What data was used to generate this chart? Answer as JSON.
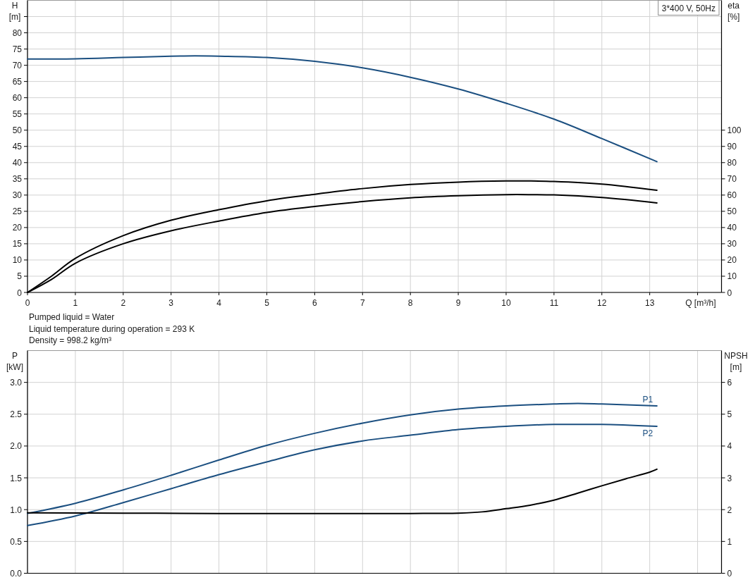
{
  "chart_data": [
    {
      "type": "line",
      "subtitle": "3*400 V, 50Hz",
      "xlabel": "Q [m³/h]",
      "ylabel": "H [m]",
      "y2label": "eta [%]",
      "annotations": [
        "Pumped liquid = Water",
        "Liquid temperature during operation = 293 K",
        "Density = 998.2 kg/m³"
      ],
      "xlim": [
        0,
        14.5
      ],
      "xticks": [
        0,
        1,
        2,
        3,
        4,
        5,
        6,
        7,
        8,
        9,
        10,
        11,
        12,
        13,
        {
          "value": 14,
          "label": null
        }
      ],
      "ylim": [
        0,
        90
      ],
      "yticks": [
        0,
        5,
        10,
        15,
        20,
        25,
        30,
        35,
        40,
        45,
        50,
        55,
        60,
        65,
        70,
        75,
        80,
        {
          "value": 85,
          "label": null
        }
      ],
      "y2lim": [
        0,
        180
      ],
      "y2ticks": [
        0,
        10,
        20,
        30,
        40,
        50,
        60,
        70,
        80,
        90,
        100
      ],
      "grid": true,
      "series": [
        {
          "color": "#1b4f80",
          "x": [
            0,
            1,
            2,
            3,
            3.5,
            4,
            5,
            6,
            7,
            8,
            9,
            10,
            11,
            12,
            13.15
          ],
          "values": [
            71.9,
            72.0,
            72.4,
            72.8,
            72.9,
            72.8,
            72.4,
            71.2,
            69.2,
            66.3,
            62.7,
            58.3,
            53.4,
            47.4,
            40.3
          ]
        },
        {
          "color": "#000000",
          "axis": "y2",
          "x": [
            0,
            0.5,
            1,
            2,
            3,
            4,
            5,
            6,
            7,
            8,
            9,
            10,
            10.5,
            11,
            12,
            13.15
          ],
          "values": [
            0,
            10,
            21,
            35,
            44.5,
            51,
            56.5,
            60.5,
            64,
            66.5,
            68,
            68.7,
            68.7,
            68.4,
            66.8,
            63
          ]
        },
        {
          "color": "#000000",
          "axis": "y2",
          "x": [
            0,
            0.5,
            1,
            2,
            3,
            4,
            5,
            6,
            7,
            8,
            9,
            10,
            10.5,
            11,
            12,
            13.15
          ],
          "values": [
            0,
            8,
            18,
            30,
            38,
            44,
            49.3,
            53,
            56,
            58.3,
            59.6,
            60.3,
            60.3,
            60.1,
            58.5,
            55.2
          ]
        }
      ]
    },
    {
      "type": "line",
      "ylabel": "P [kW]",
      "y2label": "NPSH [m]",
      "xlim": [
        0,
        14.5
      ],
      "xticks": [
        0,
        1,
        2,
        3,
        4,
        5,
        6,
        7,
        8,
        9,
        10,
        11,
        12,
        13,
        14
      ],
      "ylim": [
        0,
        3.5
      ],
      "yticks": [
        {
          "value": 0,
          "label": "0.0"
        },
        0.5,
        {
          "value": 1,
          "label": "1.0"
        },
        1.5,
        {
          "value": 2,
          "label": "2.0"
        },
        2.5,
        {
          "value": 3,
          "label": "3.0"
        }
      ],
      "y2lim": [
        0,
        7
      ],
      "y2ticks": [
        0,
        1,
        2,
        3,
        4,
        5,
        6
      ],
      "grid": true,
      "tick_labels": "y",
      "series": [
        {
          "name": "P1",
          "color": "#1b4f80",
          "x": [
            0,
            1,
            2,
            3,
            4,
            5,
            6,
            7,
            8,
            9,
            10,
            11,
            11.5,
            12,
            13.15
          ],
          "values": [
            0.94,
            1.1,
            1.31,
            1.54,
            1.78,
            2.01,
            2.2,
            2.36,
            2.49,
            2.58,
            2.63,
            2.66,
            2.67,
            2.66,
            2.63
          ]
        },
        {
          "name": "P2",
          "color": "#1b4f80",
          "x": [
            0,
            1,
            2,
            3,
            4,
            5,
            6,
            7,
            8,
            9,
            10,
            11,
            11.5,
            12,
            13.15
          ],
          "values": [
            0.75,
            0.9,
            1.11,
            1.33,
            1.55,
            1.75,
            1.94,
            2.08,
            2.17,
            2.26,
            2.31,
            2.34,
            2.34,
            2.34,
            2.31
          ]
        },
        {
          "color": "#000000",
          "axis": "y2",
          "x": [
            0,
            2,
            4,
            5,
            6,
            7,
            8,
            9,
            9.5,
            10,
            10.5,
            11,
            11.5,
            12,
            12.5,
            13,
            13.15
          ],
          "values": [
            1.9,
            1.89,
            1.88,
            1.88,
            1.88,
            1.88,
            1.88,
            1.89,
            1.93,
            2.03,
            2.14,
            2.3,
            2.52,
            2.75,
            2.97,
            3.18,
            3.27
          ]
        }
      ]
    }
  ]
}
